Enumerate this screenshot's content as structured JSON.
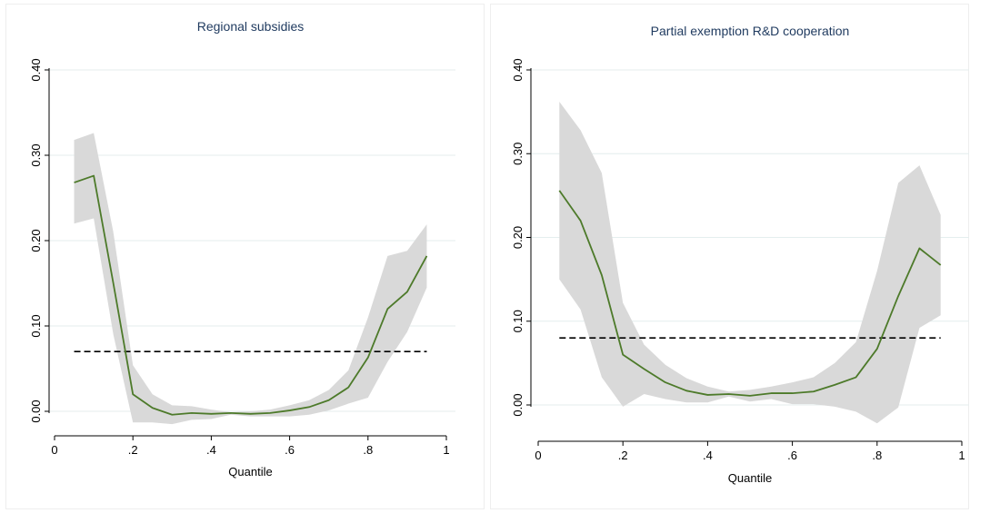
{
  "chart_data": [
    {
      "type": "line",
      "title": "Regional subsidies",
      "xlabel": "Quantile",
      "ylabel": "",
      "xlim": [
        0,
        1
      ],
      "ylim": [
        0,
        0.4
      ],
      "xticks": [
        0,
        0.2,
        0.4,
        0.6,
        0.8,
        1
      ],
      "xtick_labels": [
        "0",
        ".2",
        ".4",
        ".6",
        ".8",
        "1"
      ],
      "yticks": [
        0,
        0.1,
        0.2,
        0.3,
        0.4
      ],
      "ytick_labels": [
        "0.00",
        "0.10",
        "0.20",
        "0.30",
        "0.40"
      ],
      "grid": true,
      "legend": "none",
      "colors": {
        "line": "#4d7a2a",
        "band": "#d9d9d9",
        "reference": "#000000",
        "grid": "#e4eeee"
      },
      "x": [
        0.05,
        0.1,
        0.15,
        0.2,
        0.25,
        0.3,
        0.35,
        0.4,
        0.45,
        0.5,
        0.55,
        0.6,
        0.65,
        0.7,
        0.75,
        0.8,
        0.85,
        0.9,
        0.95
      ],
      "series": [
        {
          "values": [
            0.268,
            0.276,
            0.15,
            0.02,
            0.004,
            -0.004,
            -0.002,
            -0.003,
            -0.002,
            -0.003,
            -0.002,
            0.001,
            0.005,
            0.013,
            0.028,
            0.063,
            0.12,
            0.14,
            0.182
          ]
        }
      ],
      "band_upper": [
        0.318,
        0.326,
        0.21,
        0.054,
        0.02,
        0.007,
        0.006,
        0.002,
        -0.001,
        0.0,
        0.002,
        0.007,
        0.013,
        0.025,
        0.048,
        0.11,
        0.182,
        0.188,
        0.219
      ],
      "band_lower": [
        0.22,
        0.226,
        0.09,
        -0.013,
        -0.013,
        -0.015,
        -0.01,
        -0.009,
        -0.004,
        -0.006,
        -0.006,
        -0.006,
        -0.004,
        0.001,
        0.009,
        0.016,
        0.058,
        0.093,
        0.145
      ],
      "reference_line": 0.07
    },
    {
      "type": "line",
      "title": "Partial exemption R&D cooperation",
      "xlabel": "Quantile",
      "ylabel": "",
      "xlim": [
        0,
        1
      ],
      "ylim": [
        0,
        0.4
      ],
      "xticks": [
        0,
        0.2,
        0.4,
        0.6,
        0.8,
        1
      ],
      "xtick_labels": [
        "0",
        ".2",
        ".4",
        ".6",
        ".8",
        "1"
      ],
      "yticks": [
        0,
        0.1,
        0.2,
        0.3,
        0.4
      ],
      "ytick_labels": [
        "0.00",
        "0.10",
        "0.20",
        "0.30",
        "0.40"
      ],
      "grid": true,
      "legend": "none",
      "colors": {
        "line": "#4d7a2a",
        "band": "#d9d9d9",
        "reference": "#000000",
        "grid": "#e4eeee"
      },
      "x": [
        0.05,
        0.1,
        0.15,
        0.2,
        0.25,
        0.3,
        0.35,
        0.4,
        0.45,
        0.5,
        0.55,
        0.6,
        0.65,
        0.7,
        0.75,
        0.8,
        0.85,
        0.9,
        0.95
      ],
      "series": [
        {
          "values": [
            0.256,
            0.22,
            0.155,
            0.06,
            0.043,
            0.027,
            0.017,
            0.012,
            0.013,
            0.011,
            0.014,
            0.014,
            0.016,
            0.024,
            0.033,
            0.067,
            0.13,
            0.187,
            0.167
          ]
        }
      ],
      "band_upper": [
        0.362,
        0.328,
        0.277,
        0.122,
        0.072,
        0.048,
        0.032,
        0.022,
        0.016,
        0.018,
        0.022,
        0.027,
        0.033,
        0.05,
        0.075,
        0.16,
        0.265,
        0.286,
        0.227
      ],
      "band_lower": [
        0.15,
        0.114,
        0.033,
        -0.002,
        0.013,
        0.007,
        0.003,
        0.003,
        0.01,
        0.004,
        0.007,
        0.001,
        0.001,
        -0.002,
        -0.008,
        -0.022,
        -0.003,
        0.092,
        0.107
      ],
      "reference_line": 0.08
    }
  ]
}
